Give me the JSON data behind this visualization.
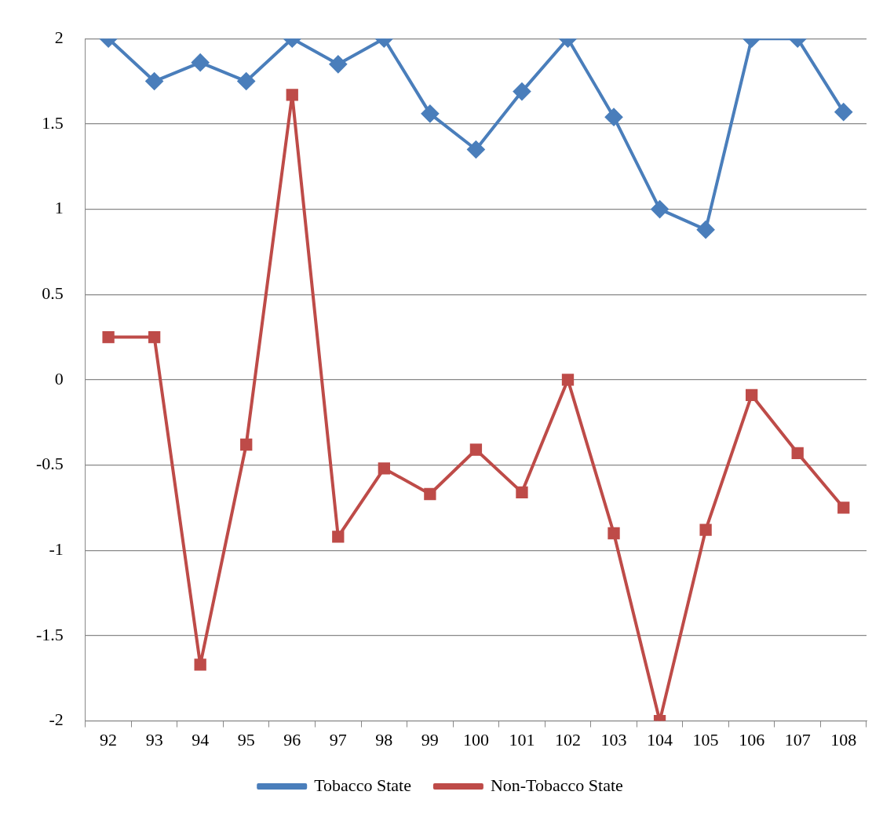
{
  "chart_data": {
    "type": "line",
    "categories": [
      "92",
      "93",
      "94",
      "95",
      "96",
      "97",
      "98",
      "99",
      "100",
      "101",
      "102",
      "103",
      "104",
      "105",
      "106",
      "107",
      "108"
    ],
    "series": [
      {
        "name": "Tobacco State",
        "color": "#4a7ebb",
        "marker": "diamond",
        "values": [
          2,
          1.75,
          1.86,
          1.75,
          2,
          1.85,
          2,
          1.56,
          1.35,
          1.69,
          2,
          1.54,
          1,
          0.88,
          2,
          2,
          1.57
        ]
      },
      {
        "name": "Non-Tobacco State",
        "color": "#be4b48",
        "marker": "square",
        "values": [
          0.25,
          0.25,
          -1.67,
          -0.38,
          1.67,
          -0.92,
          -0.52,
          -0.67,
          -0.41,
          -0.66,
          0,
          -0.9,
          -2,
          -0.88,
          -0.09,
          -0.43,
          -0.75
        ]
      }
    ],
    "ylim": [
      -2,
      2
    ],
    "yticks": [
      -2,
      -1.5,
      -1,
      -0.5,
      0,
      0.5,
      1,
      1.5,
      2
    ],
    "grid": "y",
    "legend": "bottom",
    "line_style": "solid"
  }
}
